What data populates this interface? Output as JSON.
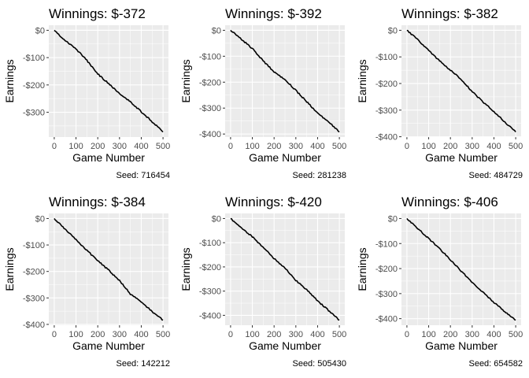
{
  "chart_data": [
    {
      "type": "line",
      "title": "Winnings: $-372",
      "xlabel": "Game Number",
      "ylabel": "Earnings",
      "caption": "Seed: 716454",
      "xlim": [
        0,
        500
      ],
      "ylim": [
        -372,
        0
      ],
      "x_ticks": [
        0,
        100,
        200,
        300,
        400,
        500
      ],
      "y_ticks": [
        0,
        -100,
        -200,
        -300
      ],
      "y_tick_labels": [
        "$0",
        "-$100",
        "-$200",
        "-$300"
      ],
      "x": [
        0,
        50,
        100,
        150,
        200,
        250,
        300,
        350,
        400,
        450,
        500
      ],
      "values": [
        0,
        -38,
        -68,
        -110,
        -160,
        -195,
        -232,
        -262,
        -298,
        -335,
        -372
      ]
    },
    {
      "type": "line",
      "title": "Winnings: $-392",
      "xlabel": "Game Number",
      "ylabel": "Earnings",
      "caption": "Seed: 281238",
      "xlim": [
        0,
        500
      ],
      "ylim": [
        -392,
        0
      ],
      "x_ticks": [
        0,
        100,
        200,
        300,
        400,
        500
      ],
      "y_ticks": [
        0,
        -100,
        -200,
        -300,
        -400
      ],
      "y_tick_labels": [
        "$0",
        "-$100",
        "-$200",
        "-$300",
        "-$400"
      ],
      "x": [
        0,
        50,
        100,
        150,
        200,
        250,
        300,
        350,
        400,
        450,
        500
      ],
      "values": [
        0,
        -35,
        -70,
        -118,
        -160,
        -190,
        -232,
        -275,
        -320,
        -352,
        -392
      ]
    },
    {
      "type": "line",
      "title": "Winnings: $-382",
      "xlabel": "Game Number",
      "ylabel": "Earnings",
      "caption": "Seed: 484729",
      "xlim": [
        0,
        500
      ],
      "ylim": [
        -382,
        0
      ],
      "x_ticks": [
        0,
        100,
        200,
        300,
        400,
        500
      ],
      "y_ticks": [
        0,
        -100,
        -200,
        -300,
        -400
      ],
      "y_tick_labels": [
        "$0",
        "-$100",
        "-$200",
        "-$300",
        "-$400"
      ],
      "x": [
        0,
        50,
        100,
        150,
        200,
        250,
        300,
        350,
        400,
        450,
        500
      ],
      "values": [
        0,
        -35,
        -75,
        -115,
        -150,
        -185,
        -230,
        -270,
        -305,
        -345,
        -382
      ]
    },
    {
      "type": "line",
      "title": "Winnings: $-384",
      "xlabel": "Game Number",
      "ylabel": "Earnings",
      "caption": "Seed: 142212",
      "xlim": [
        0,
        500
      ],
      "ylim": [
        -384,
        0
      ],
      "x_ticks": [
        0,
        100,
        200,
        300,
        400,
        500
      ],
      "y_ticks": [
        0,
        -100,
        -200,
        -300,
        -400
      ],
      "y_tick_labels": [
        "$0",
        "-$100",
        "-$200",
        "-$300",
        "-$400"
      ],
      "x": [
        0,
        50,
        100,
        150,
        200,
        250,
        300,
        350,
        400,
        450,
        500
      ],
      "values": [
        0,
        -40,
        -80,
        -120,
        -160,
        -195,
        -235,
        -285,
        -315,
        -352,
        -384
      ]
    },
    {
      "type": "line",
      "title": "Winnings: $-420",
      "xlabel": "Game Number",
      "ylabel": "Earnings",
      "caption": "Seed: 505430",
      "xlim": [
        0,
        500
      ],
      "ylim": [
        -420,
        0
      ],
      "x_ticks": [
        0,
        100,
        200,
        300,
        400,
        500
      ],
      "y_ticks": [
        0,
        -100,
        -200,
        -300,
        -400
      ],
      "y_tick_labels": [
        "$0",
        "-$100",
        "-$200",
        "-$300",
        "-$400"
      ],
      "x": [
        0,
        50,
        100,
        150,
        200,
        250,
        300,
        350,
        400,
        450,
        500
      ],
      "values": [
        0,
        -40,
        -75,
        -120,
        -165,
        -205,
        -255,
        -295,
        -340,
        -380,
        -420
      ]
    },
    {
      "type": "line",
      "title": "Winnings: $-406",
      "xlabel": "Game Number",
      "ylabel": "Earnings",
      "caption": "Seed: 654582",
      "xlim": [
        0,
        500
      ],
      "ylim": [
        -406,
        0
      ],
      "x_ticks": [
        0,
        100,
        200,
        300,
        400,
        500
      ],
      "y_ticks": [
        0,
        -100,
        -200,
        -300,
        -400
      ],
      "y_tick_labels": [
        "$0",
        "-$100",
        "-$200",
        "-$300",
        "-$400"
      ],
      "x": [
        0,
        50,
        100,
        150,
        200,
        250,
        300,
        350,
        400,
        450,
        500
      ],
      "values": [
        0,
        -40,
        -80,
        -120,
        -165,
        -210,
        -255,
        -295,
        -335,
        -372,
        -406
      ]
    }
  ]
}
